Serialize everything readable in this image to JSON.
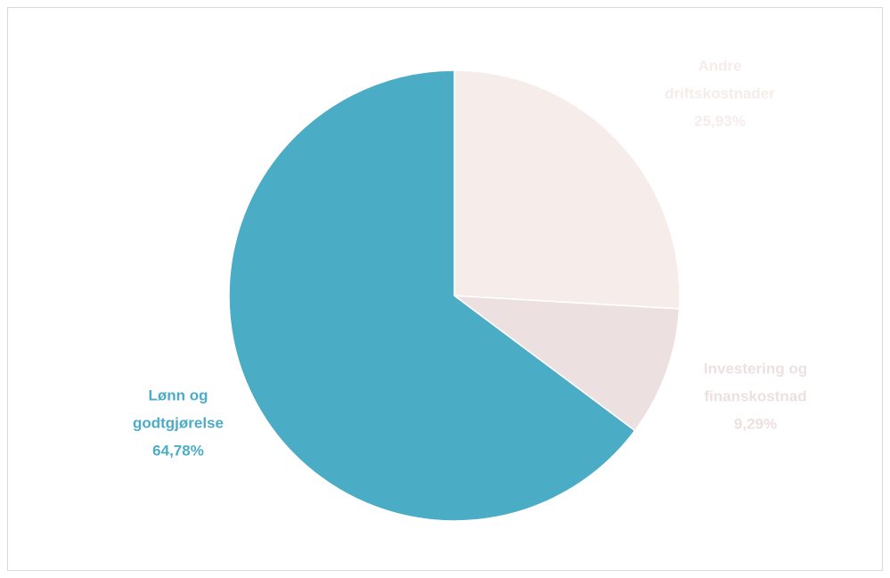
{
  "chart_data": {
    "type": "pie",
    "categories": [
      "Andre driftskostnader",
      "Investering og finanskostnad",
      "Lønn og godtgjørelse"
    ],
    "values": [
      25.93,
      9.29,
      64.78
    ],
    "value_labels": [
      "25,93%",
      "9,29%",
      "64,78%"
    ],
    "colors": [
      "#f6ecea",
      "#ede0e0",
      "#4bacc6"
    ],
    "label_colors": [
      "#f6ecea",
      "#ede0e0",
      "#4bacc6"
    ]
  }
}
